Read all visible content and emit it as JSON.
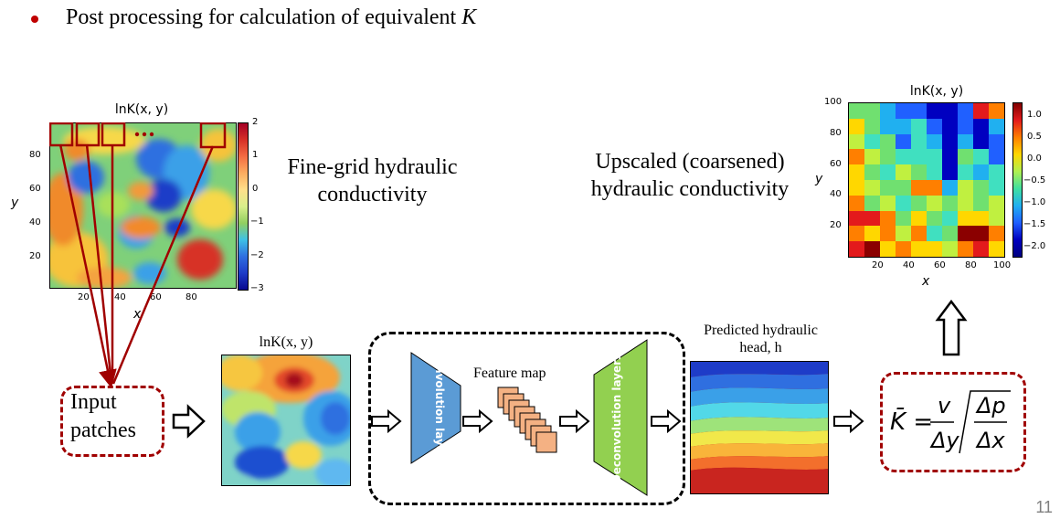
{
  "header": {
    "bullet_text": "Post processing for calculation of equivalent",
    "bullet_var": "K"
  },
  "fine_grid": {
    "plot_title": "lnK(x, y)",
    "xlabel": "x",
    "ylabel": "y",
    "x_ticks": [
      "20",
      "40",
      "60",
      "80"
    ],
    "y_ticks": [
      "80",
      "60",
      "40",
      "20"
    ],
    "colorbar_ticks": [
      "2",
      "1",
      "0",
      "−1",
      "−2",
      "−3"
    ],
    "caption_line1": "Fine-grid hydraulic",
    "caption_line2": "conductivity"
  },
  "upscaled": {
    "plot_title": "lnK(x, y)",
    "xlabel": "x",
    "ylabel": "y",
    "x_ticks": [
      "20",
      "40",
      "60",
      "80",
      "100"
    ],
    "y_ticks": [
      "100",
      "80",
      "60",
      "40",
      "20"
    ],
    "colorbar_ticks": [
      "1.0",
      "0.5",
      "0.0",
      "−0.5",
      "−1.0",
      "−1.5",
      "−2.0"
    ],
    "caption_line1": "Upscaled (coarsened)",
    "caption_line2": "hydraulic conductivity"
  },
  "input_patches": {
    "line1": "Input",
    "line2": "patches"
  },
  "small_field": {
    "title": "lnK(x, y)"
  },
  "network": {
    "conv_label": "Convolution layers",
    "feature_map_label": "Feature map",
    "deconv_label": "Deconvolution layers"
  },
  "head_field": {
    "title_line1": "Predicted hydraulic",
    "title_line2": "head, h"
  },
  "formula": {
    "lhs": "K̄ =",
    "v": "v",
    "dy": "Δy",
    "dp": "Δp",
    "dx": "Δx"
  },
  "page_number": "11",
  "colors": {
    "accent_red": "#a00000",
    "bullet_red": "#c00000",
    "conv_blue": "#5b9bd5",
    "deconv_green": "#92d050",
    "feature_orange": "#f4b183"
  }
}
